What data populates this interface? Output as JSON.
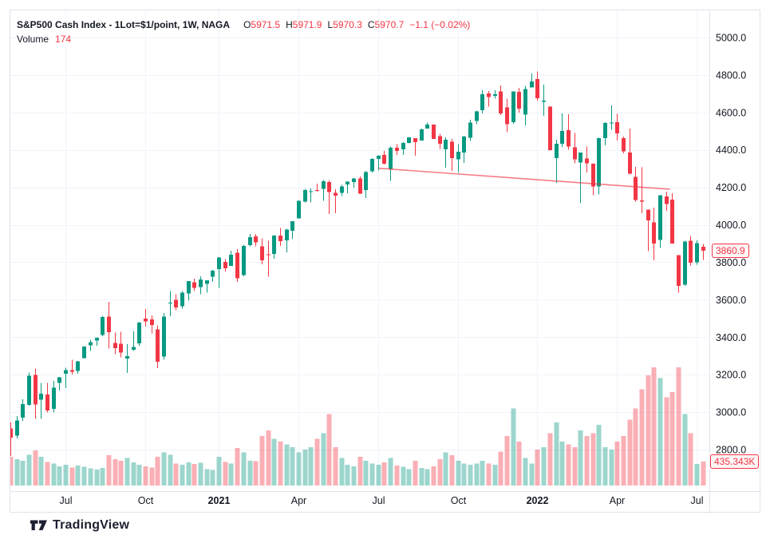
{
  "header": {
    "symbol_title": "S&P500 Cash Index - 1Lot=$1/point, 1W, NAGA",
    "ohlc": {
      "o_key": "O",
      "o": "5971.5",
      "h_key": "H",
      "h": "5971.9",
      "l_key": "L",
      "l": "5970.3",
      "c_key": "C",
      "c": "5970.7",
      "change": "−1.1 (−0.02%)"
    },
    "volume_row": {
      "label": "Volume",
      "value": "174"
    }
  },
  "price_scale": {
    "last_price": "3860.9"
  },
  "volume_scale": {
    "last_volume": "435.343K"
  },
  "footer": {
    "brand": "TradingView"
  },
  "colors": {
    "up": "#089981",
    "down": "#f23645",
    "volume_up": "rgba(8,153,129,0.40)",
    "volume_down": "rgba(242,54,69,0.40)",
    "grid": "#f0f3fa",
    "axis_text": "#131722",
    "separator": "#e0e3eb",
    "trendline": "rgba(242,54,69,0.65)",
    "accent_red": "#f23645"
  },
  "chart_data": {
    "type": "candlestick",
    "title": "S&P500 Cash Index weekly with volume",
    "interval": "1W",
    "start_week": "2020-05-11",
    "ylim": [
      2800,
      5000
    ],
    "y_ticks": [
      5000,
      4800,
      4600,
      4400,
      4200,
      4000,
      3800,
      3600,
      3400,
      3200,
      3000,
      2800
    ],
    "grid": true,
    "legend_position": "top-left",
    "last_price": 3860.9,
    "last_volume_k": 435.343,
    "month_markers": [
      {
        "index": 9,
        "label": "Jul",
        "bold": false
      },
      {
        "index": 22,
        "label": "Oct",
        "bold": false
      },
      {
        "index": 34,
        "label": "2021",
        "bold": true
      },
      {
        "index": 47,
        "label": "Apr",
        "bold": false
      },
      {
        "index": 60,
        "label": "Jul",
        "bold": false
      },
      {
        "index": 73,
        "label": "Oct",
        "bold": false
      },
      {
        "index": 86,
        "label": "2022",
        "bold": true
      },
      {
        "index": 99,
        "label": "Apr",
        "bold": false
      },
      {
        "index": 112,
        "label": "Jul",
        "bold": false
      }
    ],
    "trendline": {
      "from_index": 60,
      "from_price": 4302,
      "to_index": 107.5,
      "to_price": 4190
    },
    "candles_format": [
      "open",
      "high",
      "low",
      "close",
      "volume_k"
    ],
    "candles": [
      [
        2913,
        2945,
        2766,
        2864,
        520
      ],
      [
        2874,
        2980,
        2860,
        2955,
        480
      ],
      [
        2970,
        3068,
        2953,
        3044,
        450
      ],
      [
        3038,
        3212,
        3034,
        3194,
        560
      ],
      [
        3199,
        3233,
        2965,
        3041,
        640
      ],
      [
        3066,
        3155,
        2965,
        3098,
        520
      ],
      [
        3094,
        3155,
        2999,
        3009,
        430
      ],
      [
        3018,
        3166,
        2999,
        3130,
        400
      ],
      [
        3156,
        3187,
        3116,
        3185,
        350
      ],
      [
        3206,
        3238,
        3128,
        3225,
        380
      ],
      [
        3225,
        3280,
        3200,
        3216,
        330
      ],
      [
        3220,
        3273,
        3205,
        3271,
        360
      ],
      [
        3289,
        3352,
        3285,
        3351,
        340
      ],
      [
        3356,
        3387,
        3327,
        3373,
        310
      ],
      [
        3381,
        3400,
        3355,
        3397,
        290
      ],
      [
        3411,
        3514,
        3405,
        3508,
        320
      ],
      [
        3510,
        3588,
        3339,
        3427,
        550
      ],
      [
        3370,
        3425,
        3310,
        3341,
        480
      ],
      [
        3364,
        3429,
        3292,
        3319,
        450
      ],
      [
        3286,
        3363,
        3209,
        3298,
        500
      ],
      [
        3333,
        3432,
        3327,
        3348,
        420
      ],
      [
        3367,
        3483,
        3354,
        3477,
        380
      ],
      [
        3500,
        3550,
        3459,
        3484,
        350
      ],
      [
        3494,
        3517,
        3420,
        3465,
        330
      ],
      [
        3441,
        3462,
        3234,
        3270,
        520
      ],
      [
        3296,
        3530,
        3280,
        3509,
        600
      ],
      [
        3583,
        3646,
        3512,
        3585,
        560
      ],
      [
        3600,
        3629,
        3544,
        3558,
        400
      ],
      [
        3566,
        3646,
        3553,
        3638,
        380
      ],
      [
        3634,
        3700,
        3595,
        3699,
        420
      ],
      [
        3694,
        3713,
        3646,
        3663,
        390
      ],
      [
        3668,
        3726,
        3630,
        3709,
        410
      ],
      [
        3684,
        3704,
        3637,
        3703,
        300
      ],
      [
        3723,
        3760,
        3695,
        3756,
        280
      ],
      [
        3764,
        3827,
        3663,
        3825,
        520
      ],
      [
        3803,
        3817,
        3750,
        3768,
        430
      ],
      [
        3781,
        3861,
        3780,
        3841,
        400
      ],
      [
        3851,
        3870,
        3695,
        3714,
        680
      ],
      [
        3731,
        3894,
        3725,
        3887,
        600
      ],
      [
        3892,
        3951,
        3885,
        3935,
        450
      ],
      [
        3939,
        3951,
        3886,
        3907,
        440
      ],
      [
        3885,
        3928,
        3789,
        3811,
        900
      ],
      [
        3843,
        3915,
        3724,
        3842,
        1000
      ],
      [
        3844,
        3944,
        3820,
        3943,
        850
      ],
      [
        3942,
        3984,
        3887,
        3913,
        800
      ],
      [
        3917,
        3978,
        3854,
        3975,
        750
      ],
      [
        3969,
        4020,
        3923,
        4020,
        700
      ],
      [
        4034,
        4131,
        4034,
        4129,
        600
      ],
      [
        4124,
        4191,
        4119,
        4185,
        650
      ],
      [
        4179,
        4194,
        4119,
        4180,
        700
      ],
      [
        4185,
        4219,
        4177,
        4181,
        850
      ],
      [
        4191,
        4238,
        4129,
        4233,
        950
      ],
      [
        4229,
        4236,
        4057,
        4174,
        1300
      ],
      [
        4170,
        4189,
        4062,
        4156,
        700
      ],
      [
        4170,
        4214,
        4154,
        4204,
        500
      ],
      [
        4216,
        4233,
        4168,
        4230,
        380
      ],
      [
        4229,
        4249,
        4198,
        4247,
        350
      ],
      [
        4248,
        4258,
        4165,
        4166,
        520
      ],
      [
        4185,
        4287,
        4144,
        4281,
        450
      ],
      [
        4285,
        4356,
        4280,
        4352,
        400
      ],
      [
        4351,
        4372,
        4290,
        4370,
        380
      ],
      [
        4373,
        4394,
        4322,
        4327,
        420
      ],
      [
        4296,
        4418,
        4234,
        4412,
        500
      ],
      [
        4411,
        4430,
        4373,
        4395,
        360
      ],
      [
        4403,
        4441,
        4374,
        4437,
        340
      ],
      [
        4437,
        4468,
        4436,
        4468,
        300
      ],
      [
        4462,
        4462,
        4368,
        4442,
        450
      ],
      [
        4451,
        4514,
        4450,
        4509,
        320
      ],
      [
        4513,
        4546,
        4513,
        4535,
        300
      ],
      [
        4535,
        4535,
        4458,
        4459,
        350
      ],
      [
        4474,
        4486,
        4406,
        4433,
        480
      ],
      [
        4403,
        4466,
        4306,
        4455,
        600
      ],
      [
        4443,
        4458,
        4289,
        4357,
        550
      ],
      [
        4349,
        4430,
        4279,
        4391,
        450
      ],
      [
        4386,
        4476,
        4330,
        4471,
        400
      ],
      [
        4464,
        4560,
        4448,
        4545,
        380
      ],
      [
        4554,
        4609,
        4538,
        4605,
        400
      ],
      [
        4611,
        4719,
        4596,
        4698,
        450
      ],
      [
        4702,
        4715,
        4631,
        4683,
        400
      ],
      [
        4689,
        4718,
        4673,
        4698,
        380
      ],
      [
        4713,
        4744,
        4586,
        4595,
        620
      ],
      [
        4628,
        4673,
        4495,
        4538,
        900
      ],
      [
        4548,
        4713,
        4540,
        4712,
        1400
      ],
      [
        4710,
        4732,
        4600,
        4621,
        800
      ],
      [
        4588,
        4741,
        4532,
        4726,
        500
      ],
      [
        4734,
        4808,
        4734,
        4766,
        400
      ],
      [
        4778,
        4819,
        4663,
        4677,
        650
      ],
      [
        4656,
        4749,
        4583,
        4663,
        700
      ],
      [
        4632,
        4633,
        4396,
        4398,
        950
      ],
      [
        4357,
        4454,
        4223,
        4432,
        1150
      ],
      [
        4432,
        4596,
        4415,
        4501,
        800
      ],
      [
        4506,
        4591,
        4402,
        4419,
        750
      ],
      [
        4413,
        4490,
        4328,
        4349,
        700
      ],
      [
        4332,
        4386,
        4115,
        4385,
        1000
      ],
      [
        4355,
        4417,
        4280,
        4329,
        900
      ],
      [
        4327,
        4328,
        4158,
        4204,
        950
      ],
      [
        4204,
        4465,
        4162,
        4463,
        1100
      ],
      [
        4463,
        4547,
        4425,
        4543,
        700
      ],
      [
        4541,
        4637,
        4508,
        4546,
        650
      ],
      [
        4547,
        4593,
        4450,
        4488,
        800
      ],
      [
        4462,
        4471,
        4382,
        4393,
        900
      ],
      [
        4385,
        4513,
        4268,
        4272,
        1200
      ],
      [
        4255,
        4309,
        4124,
        4132,
        1400
      ],
      [
        4130,
        4308,
        4062,
        4123,
        1750
      ],
      [
        4081,
        4082,
        3859,
        4024,
        2000
      ],
      [
        4013,
        4091,
        3810,
        3901,
        2150
      ],
      [
        3919,
        4158,
        3876,
        4158,
        1950
      ],
      [
        4151,
        4178,
        4074,
        4110,
        1600
      ],
      [
        4134,
        4168,
        3900,
        3901,
        1700
      ],
      [
        3838,
        3839,
        3637,
        3675,
        2150
      ],
      [
        3680,
        3914,
        3675,
        3910,
        1300
      ],
      [
        3915,
        3940,
        3782,
        3798,
        950
      ],
      [
        3800,
        3918,
        3788,
        3903,
        390
      ],
      [
        3884,
        3898,
        3812,
        3860.9,
        435.343
      ]
    ]
  }
}
